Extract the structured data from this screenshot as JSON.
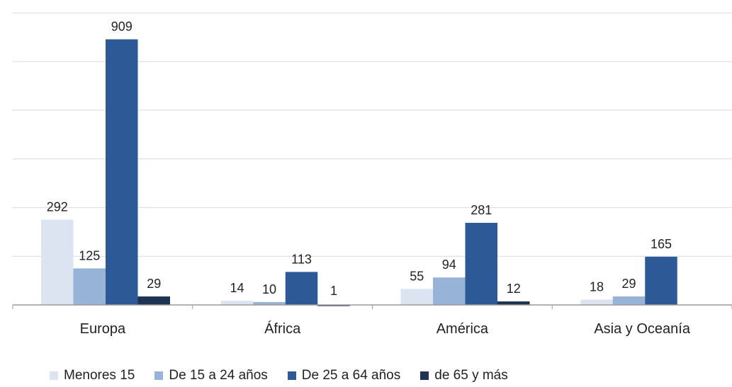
{
  "chart_data": {
    "type": "bar",
    "title": "",
    "xlabel": "",
    "ylabel": "",
    "ylim": [
      0,
      1000
    ],
    "grid": true,
    "legend_position": "bottom",
    "categories": [
      "Europa",
      "África",
      "América",
      "Asia y Oceanía"
    ],
    "series": [
      {
        "name": "Menores 15",
        "color": "#dbe4f0",
        "values": [
          292,
          14,
          55,
          18
        ],
        "labels": [
          "292",
          "14",
          "55",
          "18"
        ]
      },
      {
        "name": "De 15 a 24 años",
        "color": "#97b3d8",
        "values": [
          125,
          10,
          94,
          29
        ],
        "labels": [
          "125",
          "10",
          "94",
          "29"
        ]
      },
      {
        "name": "De 25 a 64 años",
        "color": "#2d5a96",
        "values": [
          909,
          113,
          281,
          165
        ],
        "labels": [
          "909",
          "113",
          "281",
          "165"
        ]
      },
      {
        "name": "de 65 y más",
        "color": "#1f3352",
        "values": [
          29,
          1,
          12,
          0
        ],
        "labels": [
          "29",
          "1",
          "12",
          ""
        ]
      }
    ]
  }
}
